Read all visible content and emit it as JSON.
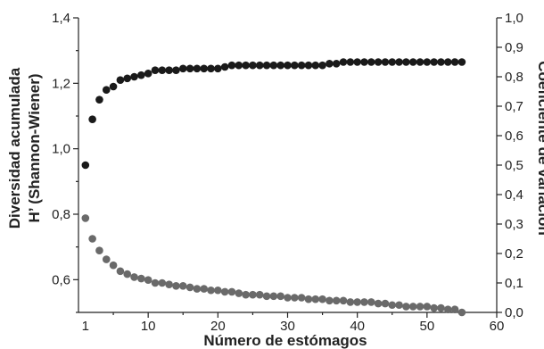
{
  "chart_data": {
    "type": "scatter",
    "xlabel": "Número de estómagos",
    "ylabel_left_line1": "Diversidad acumulada",
    "ylabel_left_line2": "H’ (Shannon-Wiener)",
    "ylabel_right": "Coeficiente de variación",
    "x_range": [
      0,
      60
    ],
    "x_ticks": [
      {
        "value": 10,
        "label": "10"
      },
      {
        "value": 20,
        "label": "20"
      },
      {
        "value": 30,
        "label": "30"
      },
      {
        "value": 40,
        "label": "40"
      },
      {
        "value": 50,
        "label": "50"
      },
      {
        "value": 60,
        "label": "60"
      }
    ],
    "x_origin_label": "1",
    "y_left_range": [
      0.5,
      1.4
    ],
    "y_left_ticks": [
      {
        "value": 0.6,
        "label": "0,6"
      },
      {
        "value": 0.8,
        "label": "0,8"
      },
      {
        "value": 1.0,
        "label": "1,0"
      },
      {
        "value": 1.2,
        "label": "1,2"
      },
      {
        "value": 1.4,
        "label": "1,4"
      }
    ],
    "y_right_range": [
      0.0,
      1.0
    ],
    "y_right_ticks": [
      {
        "value": 0.0,
        "label": "0,0"
      },
      {
        "value": 0.1,
        "label": "0,1"
      },
      {
        "value": 0.2,
        "label": "0,2"
      },
      {
        "value": 0.3,
        "label": "0,3"
      },
      {
        "value": 0.4,
        "label": "0,4"
      },
      {
        "value": 0.5,
        "label": "0,5"
      },
      {
        "value": 0.6,
        "label": "0,6"
      },
      {
        "value": 0.7,
        "label": "0,7"
      },
      {
        "value": 0.8,
        "label": "0,8"
      },
      {
        "value": 0.9,
        "label": "0,9"
      },
      {
        "value": 1.0,
        "label": "1,0"
      }
    ],
    "grid": false,
    "series": [
      {
        "axis": "left",
        "color": "#1a1a1a",
        "x": [
          1,
          2,
          3,
          4,
          5,
          6,
          7,
          8,
          9,
          10,
          11,
          12,
          13,
          14,
          15,
          16,
          17,
          18,
          19,
          20,
          21,
          22,
          23,
          24,
          25,
          26,
          27,
          28,
          29,
          30,
          31,
          32,
          33,
          34,
          35,
          36,
          37,
          38,
          39,
          40,
          41,
          42,
          43,
          44,
          45,
          46,
          47,
          48,
          49,
          50,
          51,
          52,
          53,
          54,
          55
        ],
        "y": [
          0.95,
          1.09,
          1.15,
          1.18,
          1.19,
          1.21,
          1.215,
          1.22,
          1.225,
          1.23,
          1.24,
          1.24,
          1.24,
          1.24,
          1.245,
          1.245,
          1.245,
          1.245,
          1.245,
          1.245,
          1.25,
          1.255,
          1.255,
          1.255,
          1.255,
          1.255,
          1.255,
          1.255,
          1.255,
          1.255,
          1.255,
          1.255,
          1.255,
          1.255,
          1.255,
          1.26,
          1.26,
          1.265,
          1.265,
          1.265,
          1.265,
          1.265,
          1.265,
          1.265,
          1.265,
          1.265,
          1.265,
          1.265,
          1.265,
          1.265,
          1.265,
          1.265,
          1.265,
          1.265,
          1.265
        ]
      },
      {
        "axis": "right",
        "color": "#6a6a6a",
        "x": [
          1,
          2,
          3,
          4,
          5,
          6,
          7,
          8,
          9,
          10,
          11,
          12,
          13,
          14,
          15,
          16,
          17,
          18,
          19,
          20,
          21,
          22,
          23,
          24,
          25,
          26,
          27,
          28,
          29,
          30,
          31,
          32,
          33,
          34,
          35,
          36,
          37,
          38,
          39,
          40,
          41,
          42,
          43,
          44,
          45,
          46,
          47,
          48,
          49,
          50,
          51,
          52,
          53,
          54,
          55
        ],
        "y": [
          0.32,
          0.25,
          0.21,
          0.18,
          0.16,
          0.14,
          0.13,
          0.12,
          0.115,
          0.11,
          0.1,
          0.1,
          0.095,
          0.09,
          0.09,
          0.085,
          0.08,
          0.08,
          0.075,
          0.075,
          0.07,
          0.07,
          0.065,
          0.06,
          0.06,
          0.06,
          0.055,
          0.055,
          0.055,
          0.05,
          0.05,
          0.05,
          0.045,
          0.045,
          0.045,
          0.04,
          0.04,
          0.04,
          0.035,
          0.035,
          0.035,
          0.035,
          0.03,
          0.03,
          0.025,
          0.025,
          0.02,
          0.02,
          0.02,
          0.02,
          0.015,
          0.015,
          0.01,
          0.01,
          0.0
        ]
      }
    ]
  }
}
